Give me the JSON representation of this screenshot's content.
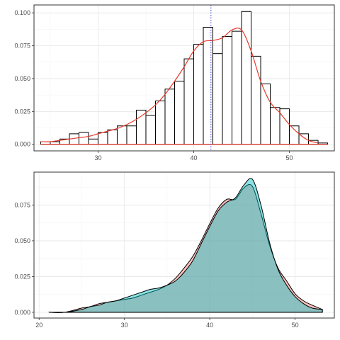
{
  "chart_data": [
    {
      "type": "bar",
      "subtype": "histogram-with-density",
      "title": "",
      "xlabel": "",
      "ylabel": "",
      "xlim": [
        23.3,
        54.7
      ],
      "ylim": [
        -0.005,
        0.106
      ],
      "x_ticks": [
        "30",
        "40",
        "50"
      ],
      "y_ticks": [
        "0.000",
        "0.025",
        "0.050",
        "0.075",
        "0.100"
      ],
      "grid": true,
      "bin_width": 1,
      "bins": [
        {
          "x0": 24,
          "x1": 25,
          "value": 0.002
        },
        {
          "x0": 25,
          "x1": 26,
          "value": 0.002
        },
        {
          "x0": 26,
          "x1": 27,
          "value": 0.004
        },
        {
          "x0": 27,
          "x1": 28,
          "value": 0.008
        },
        {
          "x0": 28,
          "x1": 29,
          "value": 0.009
        },
        {
          "x0": 29,
          "x1": 30,
          "value": 0.004
        },
        {
          "x0": 30,
          "x1": 31,
          "value": 0.009
        },
        {
          "x0": 31,
          "x1": 32,
          "value": 0.011
        },
        {
          "x0": 32,
          "x1": 33,
          "value": 0.014
        },
        {
          "x0": 33,
          "x1": 34,
          "value": 0.014
        },
        {
          "x0": 34,
          "x1": 35,
          "value": 0.026
        },
        {
          "x0": 35,
          "x1": 36,
          "value": 0.022
        },
        {
          "x0": 36,
          "x1": 37,
          "value": 0.033
        },
        {
          "x0": 37,
          "x1": 38,
          "value": 0.042
        },
        {
          "x0": 38,
          "x1": 39,
          "value": 0.048
        },
        {
          "x0": 39,
          "x1": 40,
          "value": 0.065
        },
        {
          "x0": 40,
          "x1": 41,
          "value": 0.076
        },
        {
          "x0": 41,
          "x1": 42,
          "value": 0.089
        },
        {
          "x0": 42,
          "x1": 43,
          "value": 0.069
        },
        {
          "x0": 43,
          "x1": 44,
          "value": 0.082
        },
        {
          "x0": 44,
          "x1": 45,
          "value": 0.086
        },
        {
          "x0": 45,
          "x1": 46,
          "value": 0.101
        },
        {
          "x0": 46,
          "x1": 47,
          "value": 0.067
        },
        {
          "x0": 47,
          "x1": 48,
          "value": 0.046
        },
        {
          "x0": 48,
          "x1": 49,
          "value": 0.028
        },
        {
          "x0": 49,
          "x1": 50,
          "value": 0.027
        },
        {
          "x0": 50,
          "x1": 51,
          "value": 0.014
        },
        {
          "x0": 51,
          "x1": 52,
          "value": 0.008
        },
        {
          "x0": 52,
          "x1": 53,
          "value": 0.003
        },
        {
          "x0": 53,
          "x1": 54,
          "value": 0.001
        }
      ],
      "density_curve": {
        "color": "#e8392a",
        "x": [
          24,
          25,
          26,
          27,
          28,
          29,
          30,
          31,
          32,
          33,
          34,
          35,
          36,
          37,
          38,
          39,
          40,
          41,
          42,
          43,
          44,
          45,
          46,
          47,
          48,
          49,
          50,
          51,
          52,
          53
        ],
        "y": [
          0.002,
          0.002,
          0.003,
          0.004,
          0.005,
          0.006,
          0.008,
          0.01,
          0.012,
          0.015,
          0.019,
          0.024,
          0.03,
          0.038,
          0.048,
          0.059,
          0.071,
          0.078,
          0.079,
          0.081,
          0.087,
          0.087,
          0.071,
          0.048,
          0.032,
          0.024,
          0.015,
          0.008,
          0.003,
          0.001
        ]
      },
      "reference_line": {
        "x": 41.8,
        "color": "#3b3bcf",
        "style": "dotted"
      },
      "baseline_color": "#e8392a"
    },
    {
      "type": "area",
      "subtype": "overlapping-density",
      "title": "",
      "xlabel": "",
      "ylabel": "",
      "xlim": [
        19.4,
        54.6
      ],
      "ylim": [
        -0.004,
        0.098
      ],
      "x_ticks": [
        "20",
        "30",
        "40",
        "50"
      ],
      "y_ticks": [
        "0.000",
        "0.025",
        "0.050",
        "0.075"
      ],
      "grid": true,
      "x": [
        21.2,
        23,
        25,
        26,
        27,
        28,
        29,
        30,
        31,
        32,
        33,
        34,
        35,
        36,
        37,
        38,
        39,
        40,
        41,
        42,
        43,
        44,
        45,
        46,
        47,
        48,
        49,
        50,
        51,
        52,
        53.2
      ],
      "series": [
        {
          "fill": "#f8766d",
          "stroke": "#000000",
          "opacity": 0.45,
          "values": [
            0.0,
            0.0,
            0.003,
            0.004,
            0.006,
            0.007,
            0.008,
            0.009,
            0.01,
            0.012,
            0.014,
            0.016,
            0.019,
            0.024,
            0.031,
            0.039,
            0.05,
            0.062,
            0.073,
            0.079,
            0.079,
            0.087,
            0.088,
            0.069,
            0.047,
            0.031,
            0.022,
            0.013,
            0.008,
            0.005,
            0.002
          ]
        },
        {
          "fill": "#00bfc4",
          "stroke": "#000000",
          "opacity": 0.45,
          "values": [
            0.0,
            0.0,
            0.002,
            0.004,
            0.005,
            0.007,
            0.008,
            0.01,
            0.012,
            0.014,
            0.016,
            0.017,
            0.019,
            0.022,
            0.028,
            0.036,
            0.048,
            0.06,
            0.071,
            0.077,
            0.08,
            0.089,
            0.093,
            0.075,
            0.049,
            0.03,
            0.019,
            0.011,
            0.006,
            0.003,
            0.002
          ]
        }
      ]
    }
  ]
}
